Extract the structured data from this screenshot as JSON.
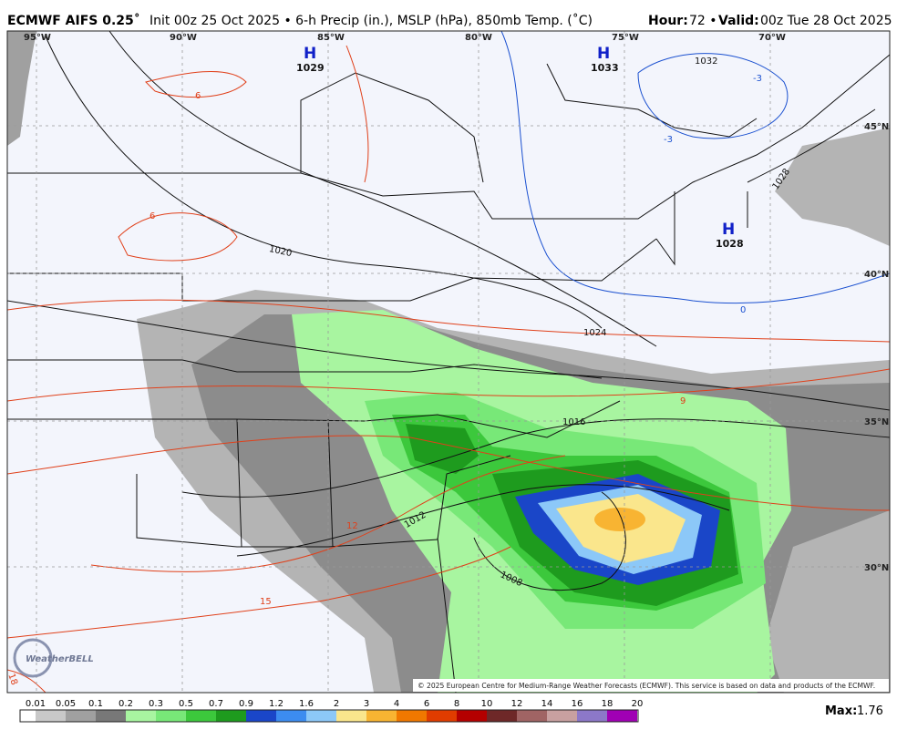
{
  "header": {
    "model": "ECMWF AIFS 0.25˚",
    "title": "Init 00z 25 Oct 2025 • 6-h Precip (in.), MSLP (hPa), 850mb Temp. (˚C)",
    "hour_label": "Hour:",
    "hour": "72 •",
    "valid_label": "Valid:",
    "valid": "00z Tue 28 Oct 2025"
  },
  "map": {
    "longitudes": [
      "95°W",
      "90°W",
      "85°W",
      "80°W",
      "75°W",
      "70°W"
    ],
    "latitudes": [
      "45°N",
      "40°N",
      "35°N",
      "30°N"
    ],
    "highs": [
      {
        "symbol": "H",
        "pressure": "1029"
      },
      {
        "symbol": "H",
        "pressure": "1033"
      },
      {
        "symbol": "H",
        "pressure": "1028"
      }
    ],
    "isobar_labels": [
      "1032",
      "1028",
      "1020",
      "1024",
      "1016",
      "1012",
      "1008"
    ],
    "temperature_labels": [
      "6",
      "6",
      "9",
      "12",
      "15",
      "18",
      "-3",
      "-3",
      "0"
    ],
    "watermark": "WeatherBELL",
    "copyright": "© 2025 European Centre for Medium-Range Weather Forecasts (ECMWF). This service is based on data and products of the ECMWF."
  },
  "colorbar": {
    "labels": [
      "0.01",
      "0.05",
      "0.1",
      "0.2",
      "0.3",
      "0.5",
      "0.7",
      "0.9",
      "1.2",
      "1.6",
      "2",
      "3",
      "4",
      "6",
      "8",
      "10",
      "12",
      "14",
      "16",
      "18",
      "20"
    ],
    "colors": [
      "#ffffff",
      "#c8c8c8",
      "#a0a0a0",
      "#787878",
      "#a8f5a0",
      "#78e878",
      "#3cc83c",
      "#1e9b1e",
      "#1a46c8",
      "#3c8cf0",
      "#8cc8f8",
      "#fae68c",
      "#f8b432",
      "#f07800",
      "#e03c00",
      "#b40000",
      "#6e2828",
      "#a06464",
      "#c8a0a0",
      "#8c78c8",
      "#a000b4"
    ],
    "max_label": "Max:",
    "max": "1.76"
  }
}
